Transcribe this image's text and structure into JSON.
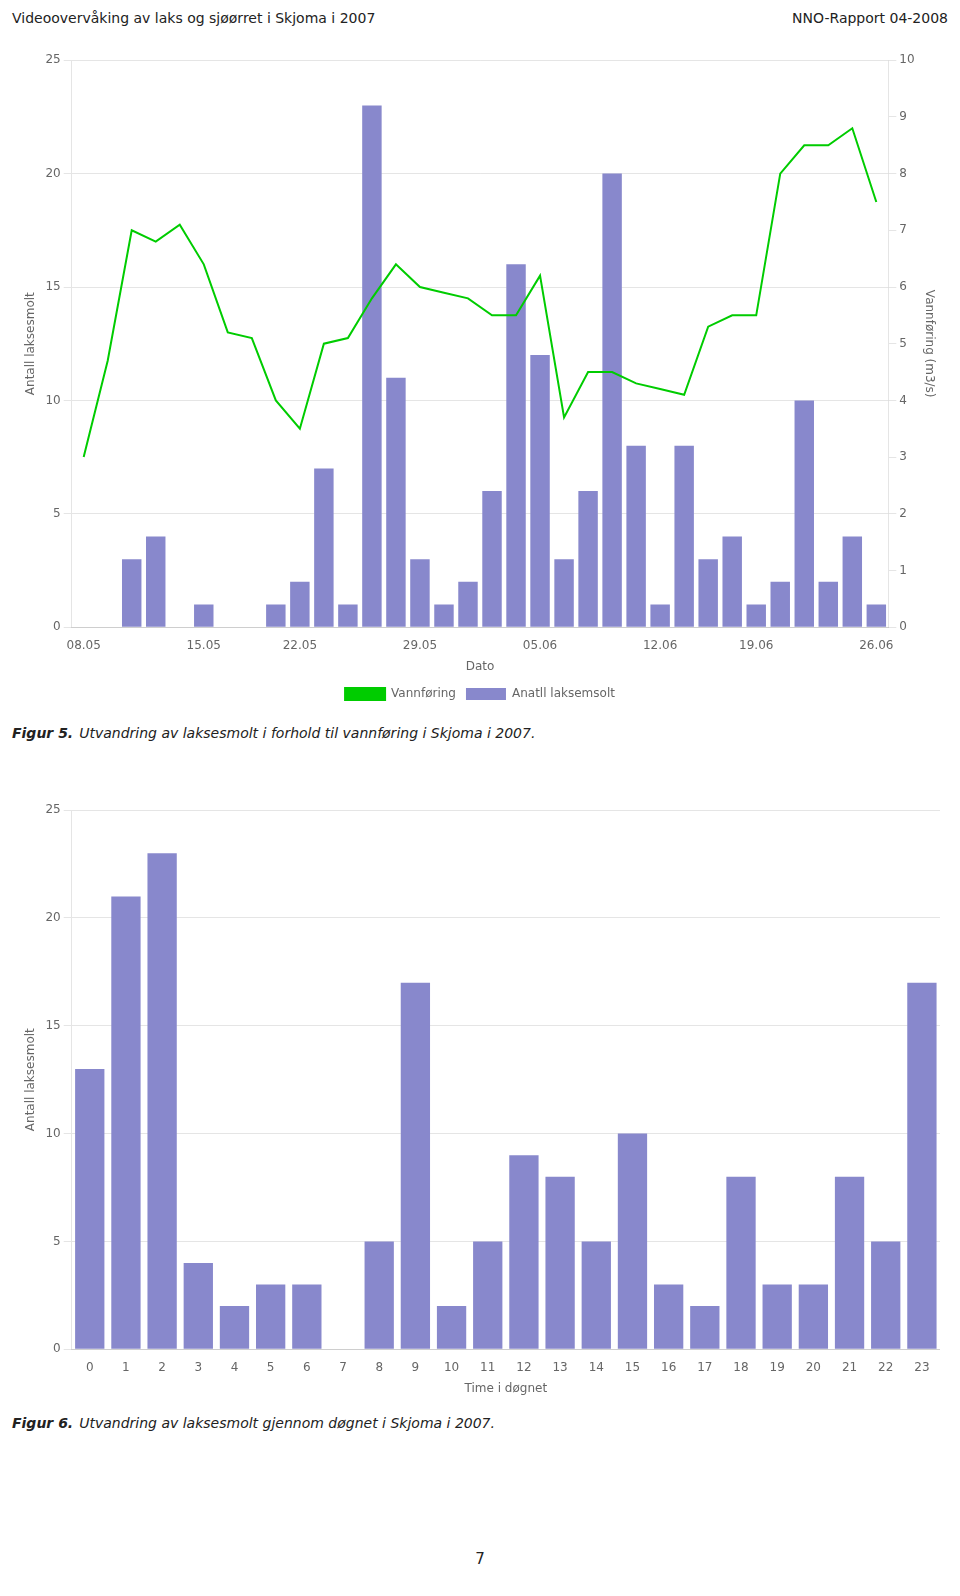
{
  "header_left": "Videoovervåking av laks og sjøørret i Skjoma i 2007",
  "header_right": "NNO-Rapport 04-2008",
  "page_number": "7",
  "chart_data": [
    {
      "type": "bar",
      "caption_label": "Figur 5.",
      "caption": "Utvandring av laksesmolt i forhold til vannføring i Skjoma i 2007.",
      "xlabel": "Dato",
      "ylabel": "Antall laksesmolt",
      "y2label": "Vannføring (m3/s)",
      "categories": [
        "08.05",
        null,
        null,
        null,
        null,
        "15.05",
        null,
        null,
        null,
        "22.05",
        null,
        null,
        null,
        null,
        "29.05",
        null,
        null,
        null,
        null,
        "05.06",
        null,
        null,
        null,
        null,
        "12.06",
        null,
        null,
        null,
        "19.06",
        null,
        null,
        null,
        null,
        "26.06"
      ],
      "series": [
        {
          "name": "Anatll laksemsolt",
          "type": "bar",
          "color": "#8888cc",
          "values": [
            0,
            0,
            3,
            4,
            0,
            1,
            0,
            0,
            1,
            2,
            7,
            1,
            23,
            11,
            3,
            1,
            2,
            6,
            16,
            12,
            3,
            6,
            20,
            8,
            1,
            8,
            3,
            4,
            1,
            2,
            10,
            2,
            4,
            1
          ]
        },
        {
          "name": "Vannføring",
          "type": "line",
          "color": "#00cc00",
          "axis": "y2",
          "values": [
            3.0,
            4.7,
            7.0,
            6.8,
            7.1,
            6.4,
            5.2,
            5.1,
            4.0,
            3.5,
            5.0,
            5.1,
            5.8,
            6.4,
            6.0,
            5.9,
            5.8,
            5.5,
            5.5,
            6.2,
            3.7,
            4.5,
            4.5,
            4.3,
            4.2,
            4.1,
            5.3,
            5.5,
            5.5,
            8.0,
            8.5,
            8.5,
            8.8,
            7.5
          ]
        }
      ],
      "ylim": [
        0,
        25
      ],
      "yticks": [
        0,
        5,
        10,
        15,
        20,
        25
      ],
      "y2lim": [
        0,
        10
      ],
      "y2ticks": [
        0,
        1,
        2,
        3,
        4,
        5,
        6,
        7,
        8,
        9,
        10
      ],
      "grid": true,
      "legend": "bottom"
    },
    {
      "type": "bar",
      "caption_label": "Figur 6.",
      "caption": "Utvandring av laksesmolt gjennom døgnet i Skjoma i 2007.",
      "xlabel": "Time i døgnet",
      "ylabel": "Antall laksesmolt",
      "categories": [
        "0",
        "1",
        "2",
        "3",
        "4",
        "5",
        "6",
        "7",
        "8",
        "9",
        "10",
        "11",
        "12",
        "13",
        "14",
        "15",
        "16",
        "17",
        "18",
        "19",
        "20",
        "21",
        "22",
        "23"
      ],
      "values": [
        13,
        21,
        23,
        4,
        2,
        3,
        3,
        0,
        5,
        17,
        2,
        5,
        9,
        8,
        5,
        10,
        3,
        2,
        8,
        3,
        3,
        8,
        5,
        17
      ],
      "color": "#8888cc",
      "ylim": [
        0,
        25
      ],
      "yticks": [
        0,
        5,
        10,
        15,
        20,
        25
      ],
      "grid": true
    }
  ]
}
